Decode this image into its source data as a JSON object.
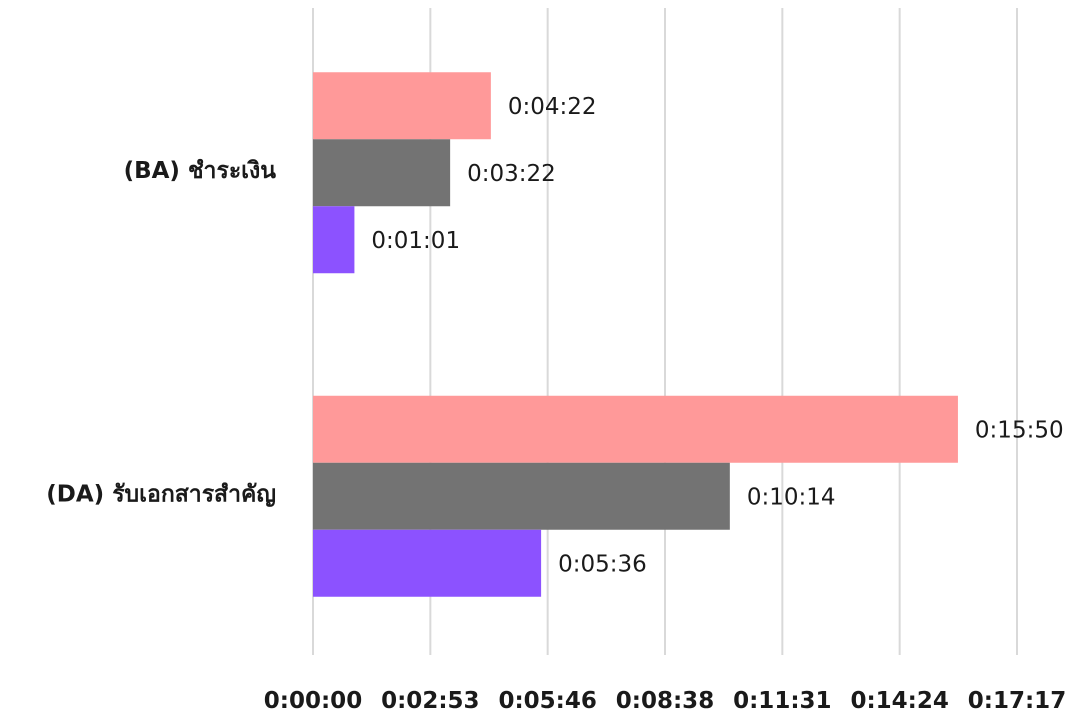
{
  "chart_data": {
    "type": "bar",
    "orientation": "horizontal",
    "categories": [
      "(BA) ชำระเงิน",
      "(DA) รับเอกสารสำคัญ"
    ],
    "series": [
      {
        "values": [
          "0:04:22",
          "0:15:50"
        ],
        "seconds": [
          262,
          950
        ],
        "color": "#ff9999"
      },
      {
        "values": [
          "0:03:22",
          "0:10:14"
        ],
        "seconds": [
          202,
          614
        ],
        "color": "#737373"
      },
      {
        "values": [
          "0:01:01",
          "0:05:36"
        ],
        "seconds": [
          61,
          336
        ],
        "color": "#8c52ff"
      }
    ],
    "x_ticks": [
      "0:00:00",
      "0:02:53",
      "0:05:46",
      "0:08:38",
      "0:11:31",
      "0:14:24",
      "0:17:17"
    ],
    "xlim_seconds": [
      0,
      1037
    ],
    "grid": "vertical",
    "legend": "none",
    "data_labels": "outside-end"
  }
}
